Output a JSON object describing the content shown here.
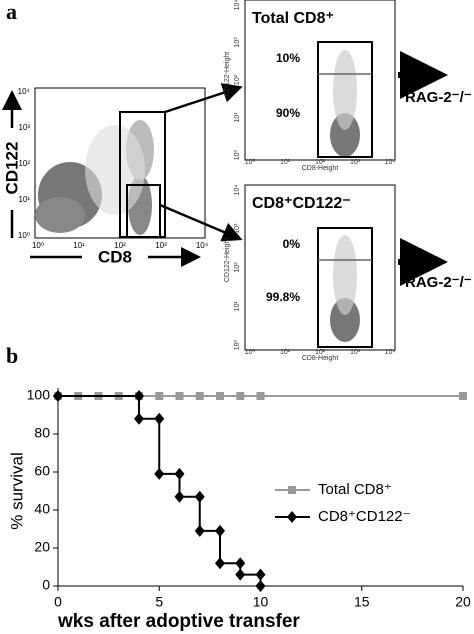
{
  "panel_a": {
    "label": "a",
    "main_plot": {
      "y_label": "CD122",
      "x_label": "CD8"
    },
    "log_ticks": [
      "10⁰",
      "10¹",
      "10²",
      "10³",
      "10⁴"
    ],
    "small_y_label": "CD122-Height",
    "small_x_label": "CD8-Height",
    "plots": [
      {
        "title": "Total CD8⁺",
        "upper_gate": "10%",
        "lower_gate": "90%",
        "target": "RAG-2⁻/⁻"
      },
      {
        "title": "CD8⁺CD122⁻",
        "upper_gate": "0%",
        "lower_gate": "99.8%",
        "target": "RAG-2⁻/⁻"
      }
    ]
  },
  "chart_data": {
    "type": "line",
    "panel_label": "b",
    "xlabel": "wks after adoptive transfer",
    "ylabel": "% survival",
    "xlim": [
      0,
      20
    ],
    "xticks": [
      0,
      5,
      10,
      15,
      20
    ],
    "ylim": [
      0,
      100
    ],
    "yticks": [
      0,
      20,
      40,
      60,
      80,
      100
    ],
    "series": [
      {
        "name": "Total CD8⁺",
        "color": "#999999",
        "marker": "square",
        "x": [
          0,
          1,
          2,
          3,
          4,
          5,
          6,
          7,
          8,
          9,
          10,
          20
        ],
        "values": [
          100,
          100,
          100,
          100,
          100,
          100,
          100,
          100,
          100,
          100,
          100,
          100
        ]
      },
      {
        "name": "CD8⁺CD122⁻",
        "color": "#000000",
        "marker": "diamond",
        "x": [
          0,
          4,
          4,
          5,
          5,
          6,
          6,
          7,
          7,
          8,
          8,
          9,
          9,
          10,
          10
        ],
        "values": [
          100,
          100,
          88,
          88,
          59,
          59,
          47,
          47,
          29,
          29,
          12,
          12,
          6,
          6,
          0
        ]
      }
    ]
  }
}
